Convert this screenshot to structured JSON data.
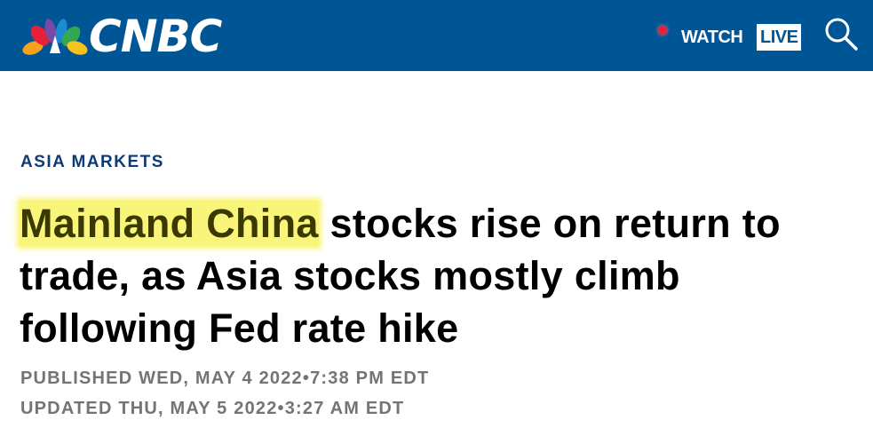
{
  "header": {
    "logo": "CNBC",
    "watch": "WATCH",
    "live": "LIVE"
  },
  "article": {
    "section": "ASIA MARKETS",
    "headline_highlight": "Mainland China",
    "headline_rest": "stocks rise on return to trade, as Asia stocks mostly climb following Fed rate hike",
    "published": "PUBLISHED WED, MAY 4 2022•7:38 PM EDT",
    "updated": "UPDATED THU, MAY 5 2022•3:27 AM EDT"
  }
}
